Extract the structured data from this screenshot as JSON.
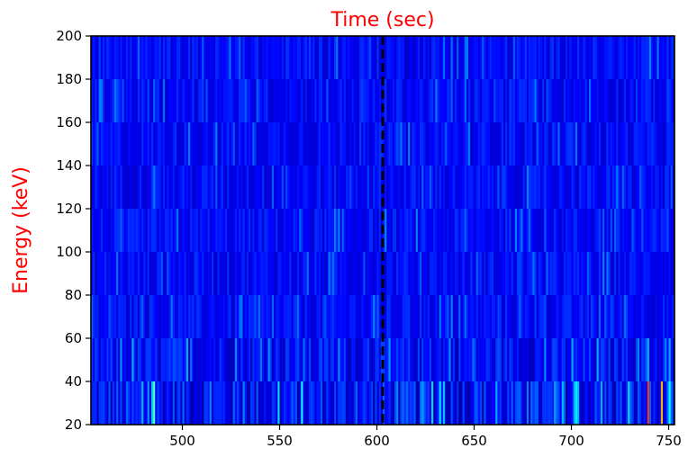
{
  "chart_data": {
    "type": "heatmap",
    "title": "Time (sec)",
    "xlabel": "",
    "ylabel": "Energy (keV)",
    "xlim": [
      453,
      753
    ],
    "ylim": [
      20,
      200
    ],
    "x_ticks": [
      500,
      550,
      600,
      650,
      700,
      750
    ],
    "y_ticks": [
      20,
      40,
      60,
      80,
      100,
      120,
      140,
      160,
      180,
      200
    ],
    "energy_bands": [
      [
        20,
        40
      ],
      [
        40,
        60
      ],
      [
        60,
        80
      ],
      [
        80,
        100
      ],
      [
        100,
        120
      ],
      [
        120,
        140
      ],
      [
        140,
        160
      ],
      [
        160,
        180
      ],
      [
        180,
        200
      ]
    ],
    "time_bin_sec": 1,
    "colormap": "jet",
    "background_color": "#0018ff",
    "marker_line": {
      "x": 603,
      "style": "dashed",
      "color": "#000000"
    },
    "notable_bins": [
      {
        "t": 485,
        "energy_band": [
          20,
          40
        ],
        "level": 0.45
      },
      {
        "t": 479,
        "energy_band": [
          20,
          40
        ],
        "level": 0.3
      },
      {
        "t": 632,
        "energy_band": [
          20,
          40
        ],
        "level": 0.35
      },
      {
        "t": 739,
        "energy_band": [
          20,
          40
        ],
        "level": 0.82
      },
      {
        "t": 746,
        "energy_band": [
          20,
          40
        ],
        "level": 0.7
      },
      {
        "t": 739,
        "energy_band": [
          40,
          60
        ],
        "level": 0.3
      }
    ],
    "grid": false
  }
}
